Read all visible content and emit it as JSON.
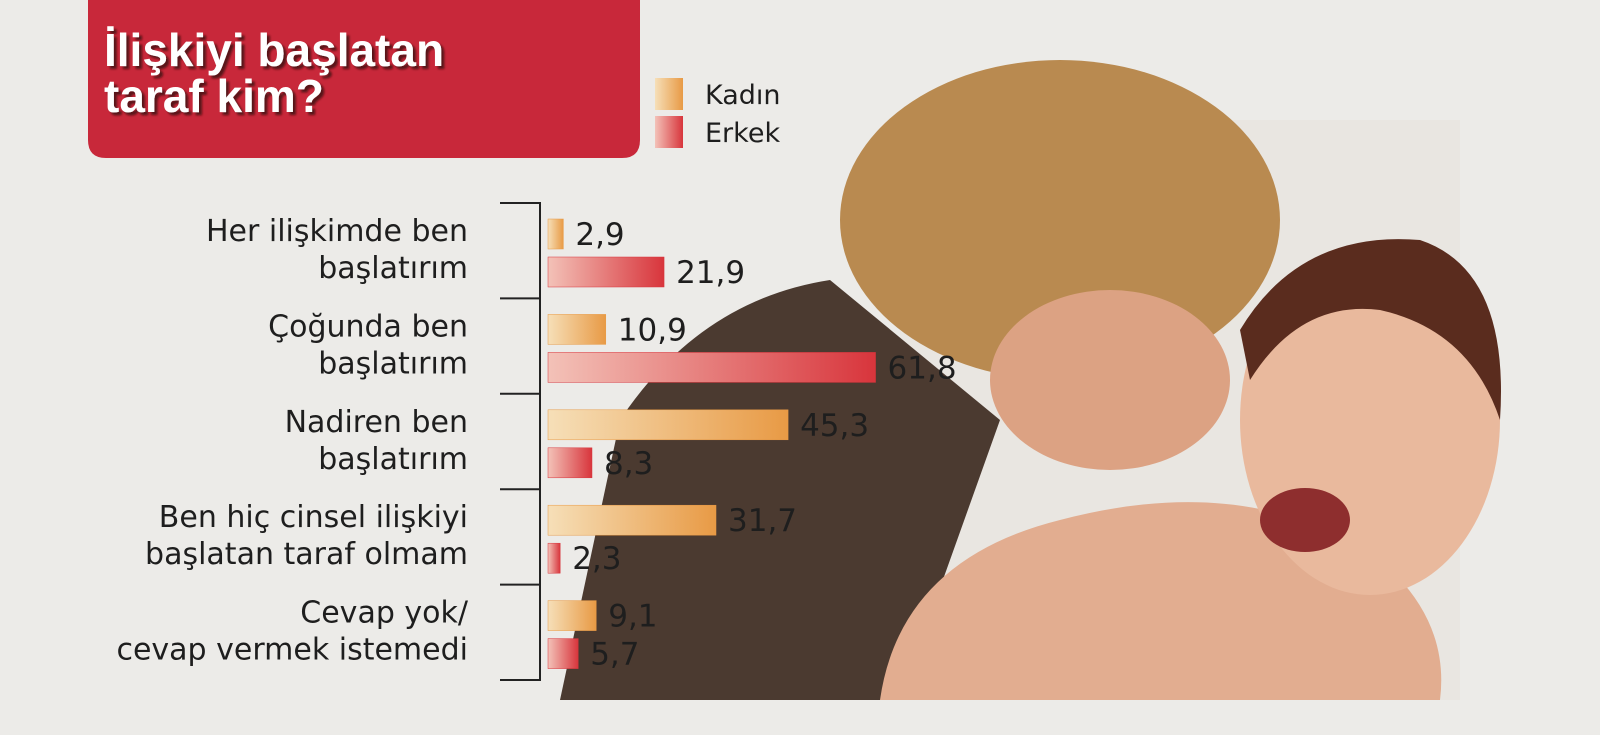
{
  "chart_data": {
    "type": "bar",
    "orientation": "horizontal",
    "title": "İlişkiyi başlatan\ntaraf kim?",
    "categories": [
      "Her ilişkimde ben\nbaşlatırım",
      "Çoğunda ben\nbaşlatırım",
      "Nadiren ben\nbaşlatırım",
      "Ben hiç cinsel ilişkiyi\nbaşlatan taraf olmam",
      "Cevap yok/\ncevap vermek istemedi"
    ],
    "series": [
      {
        "name": "Kadın",
        "color": "#e89a45",
        "values": [
          2.9,
          10.9,
          45.3,
          31.7,
          9.1
        ],
        "value_labels": [
          "2,9",
          "10,9",
          "45,3",
          "31,7",
          "9,1"
        ]
      },
      {
        "name": "Erkek",
        "color": "#d8353c",
        "values": [
          21.9,
          61.8,
          8.3,
          2.3,
          5.7
        ],
        "value_labels": [
          "21,9",
          "61,8",
          "8,3",
          "2,3",
          "5,7"
        ]
      }
    ]
  }
}
